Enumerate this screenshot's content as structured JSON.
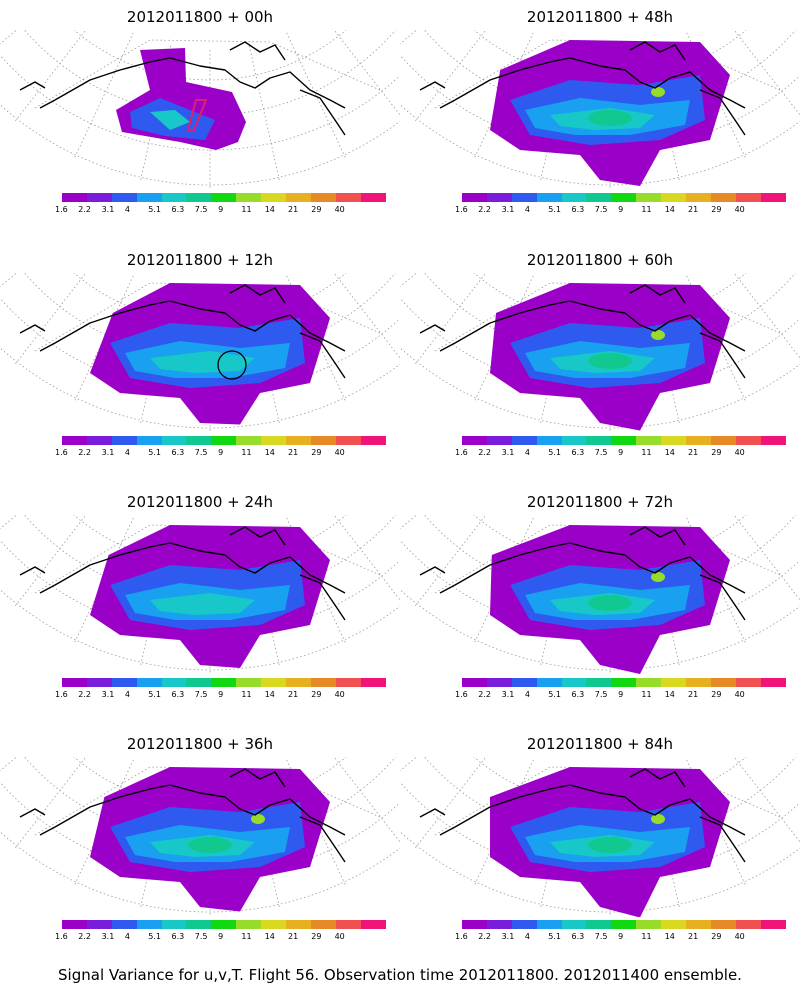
{
  "caption": "Signal Variance for u,v,T. Flight 56. Observation time 2012011800. 2012011400 ensemble.",
  "colorbar": {
    "labels": [
      "1.6",
      "2.2",
      "3.1",
      "4",
      "5.1",
      "6.3",
      "7.5",
      "9",
      "11",
      "14",
      "21",
      "29",
      "40"
    ],
    "colors": [
      "#9a00c8",
      "#7a1cdc",
      "#2e5af0",
      "#1aa0f0",
      "#18c8c8",
      "#10c890",
      "#12d812",
      "#96dc28",
      "#d8d820",
      "#e6b020",
      "#e68a28",
      "#f05050",
      "#f01478"
    ]
  },
  "panels": [
    {
      "title": "2012011800 + 00h",
      "level": 0
    },
    {
      "title": "2012011800 + 48h",
      "level": 4
    },
    {
      "title": "2012011800 + 12h",
      "level": 1
    },
    {
      "title": "2012011800 + 60h",
      "level": 5
    },
    {
      "title": "2012011800 + 24h",
      "level": 2
    },
    {
      "title": "2012011800 + 72h",
      "level": 6
    },
    {
      "title": "2012011800 + 36h",
      "level": 3
    },
    {
      "title": "2012011800 + 84h",
      "level": 7
    }
  ]
}
